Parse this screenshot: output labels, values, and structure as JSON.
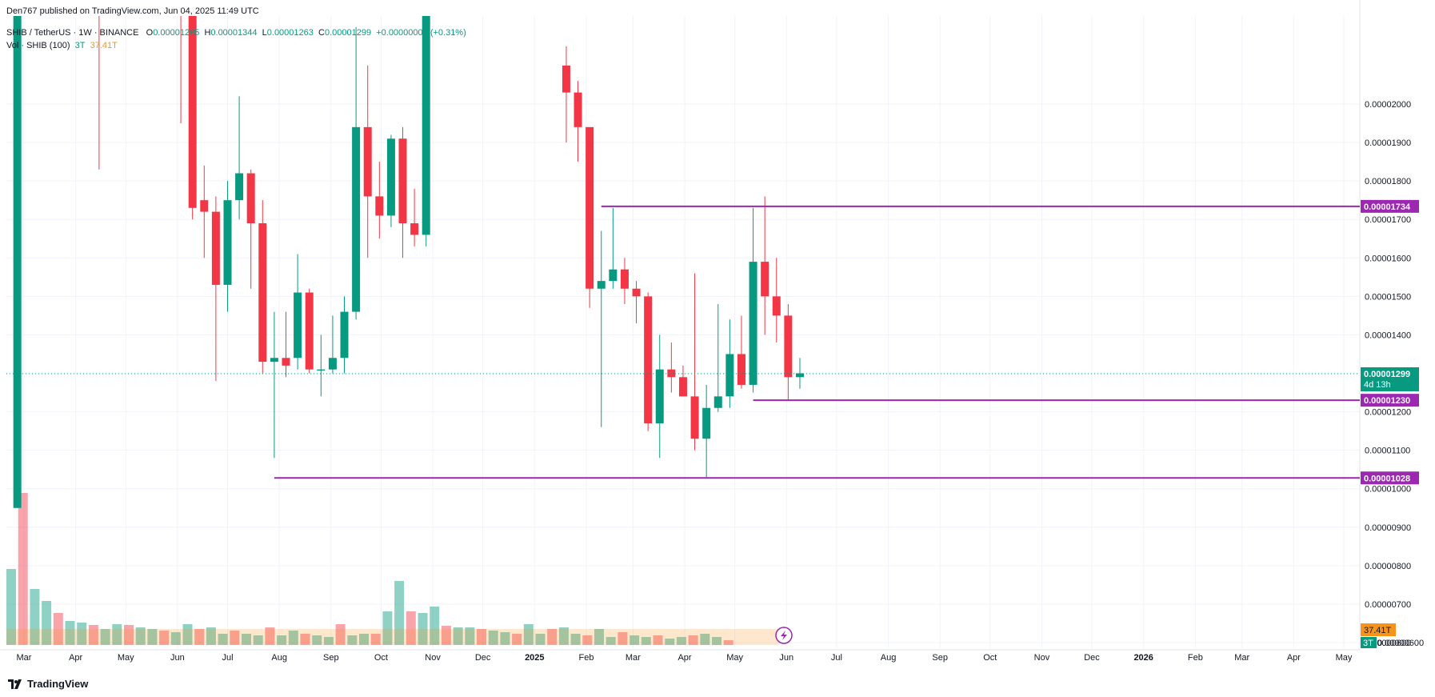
{
  "header": {
    "published": "Den767 published on TradingView.com, Jun 04, 2025 11:49 UTC",
    "symbol": "SHIB / TetherUS · 1W · BINANCE",
    "o_label": "O",
    "o_value": "0.00001295",
    "h_label": "H",
    "h_value": "0.00001344",
    "l_label": "L",
    "l_value": "0.00001263",
    "c_label": "C",
    "c_value": "0.00001299",
    "change": "+0.00000004 (+0.31%)",
    "vol_label": "Vol · SHIB (100)",
    "vol_value_1": "3T",
    "vol_value_2": "37.41T"
  },
  "footer": {
    "brand": "TradingView",
    "logo_icon": "tradingview-logo-icon"
  },
  "colors": {
    "up": "#089981",
    "down": "#f23645",
    "level_line": "#9c27b0",
    "current_price": "#089981",
    "volume_ma": "#f7931a"
  },
  "chart_data": {
    "type": "candlestick",
    "ylim": [
      6e-06,
      2.13e-05
    ],
    "y_ticks": [
      "0.00000600",
      "0.00000700",
      "0.00000800",
      "0.00000900",
      "0.00001000",
      "0.00001100",
      "0.00001200",
      "0.00001300",
      "0.00001400",
      "0.00001500",
      "0.00001600",
      "0.00001700",
      "0.00001800",
      "0.00001900",
      "0.00002000"
    ],
    "y_tick_values": [
      6e-06,
      7e-06,
      8e-06,
      9e-06,
      1e-05,
      1.1e-05,
      1.2e-05,
      1.3e-05,
      1.4e-05,
      1.5e-05,
      1.6e-05,
      1.7e-05,
      1.8e-05,
      1.9e-05,
      2e-05
    ],
    "x_months": [
      {
        "label": "Mar",
        "date": "2024-03-01"
      },
      {
        "label": "Apr",
        "date": "2024-04-01"
      },
      {
        "label": "May",
        "date": "2024-05-01"
      },
      {
        "label": "Jun",
        "date": "2024-06-01"
      },
      {
        "label": "Jul",
        "date": "2024-07-01"
      },
      {
        "label": "Aug",
        "date": "2024-08-01"
      },
      {
        "label": "Sep",
        "date": "2024-09-01"
      },
      {
        "label": "Oct",
        "date": "2024-10-01"
      },
      {
        "label": "Nov",
        "date": "2024-11-01"
      },
      {
        "label": "Dec",
        "date": "2024-12-01"
      },
      {
        "label": "2025",
        "date": "2025-01-01",
        "bold": true
      },
      {
        "label": "Feb",
        "date": "2025-02-01"
      },
      {
        "label": "Mar",
        "date": "2025-03-01"
      },
      {
        "label": "Apr",
        "date": "2025-04-01"
      },
      {
        "label": "May",
        "date": "2025-05-01"
      },
      {
        "label": "Jun",
        "date": "2025-06-01"
      },
      {
        "label": "Jul",
        "date": "2025-07-01"
      },
      {
        "label": "Aug",
        "date": "2025-08-01"
      },
      {
        "label": "Sep",
        "date": "2025-09-01"
      },
      {
        "label": "Oct",
        "date": "2025-10-01"
      },
      {
        "label": "Nov",
        "date": "2025-11-01"
      },
      {
        "label": "Dec",
        "date": "2025-12-01"
      },
      {
        "label": "2026",
        "date": "2026-01-01",
        "bold": true
      },
      {
        "label": "Feb",
        "date": "2026-02-01"
      },
      {
        "label": "Mar",
        "date": "2026-03-01"
      },
      {
        "label": "Apr",
        "date": "2026-04-01"
      },
      {
        "label": "May",
        "date": "2026-05-01"
      }
    ],
    "candles": [
      {
        "t": "2024-02-26",
        "o": 9.5e-06,
        "h": 3.3e-05,
        "l": 9.5e-06,
        "c": 3.2e-05,
        "v": 8.6
      },
      {
        "t": "2024-04-15",
        "o": 2.6e-05,
        "h": 2.75e-05,
        "l": 1.83e-05,
        "c": 2.4e-05,
        "v": 0
      },
      {
        "t": "2024-06-03",
        "o": 2.4e-05,
        "h": 2.5e-05,
        "l": 1.95e-05,
        "c": 2.3e-05,
        "v": 0
      },
      {
        "t": "2024-06-10",
        "o": 2.3e-05,
        "h": 2.45e-05,
        "l": 1.7e-05,
        "c": 1.73e-05,
        "v": 0
      },
      {
        "t": "2024-06-17",
        "o": 1.75e-05,
        "h": 1.84e-05,
        "l": 1.6e-05,
        "c": 1.72e-05,
        "v": 0
      },
      {
        "t": "2024-06-24",
        "o": 1.72e-05,
        "h": 1.76e-05,
        "l": 1.28e-05,
        "c": 1.53e-05,
        "v": 0
      },
      {
        "t": "2024-07-01",
        "o": 1.53e-05,
        "h": 1.8e-05,
        "l": 1.46e-05,
        "c": 1.75e-05,
        "v": 0
      },
      {
        "t": "2024-07-08",
        "o": 1.75e-05,
        "h": 2.02e-05,
        "l": 1.7e-05,
        "c": 1.82e-05,
        "v": 0
      },
      {
        "t": "2024-07-15",
        "o": 1.82e-05,
        "h": 1.83e-05,
        "l": 1.52e-05,
        "c": 1.69e-05,
        "v": 0
      },
      {
        "t": "2024-07-22",
        "o": 1.69e-05,
        "h": 1.75e-05,
        "l": 1.3e-05,
        "c": 1.33e-05,
        "v": 0
      },
      {
        "t": "2024-07-29",
        "o": 1.33e-05,
        "h": 1.46e-05,
        "l": 1.08e-05,
        "c": 1.34e-05,
        "v": 0
      },
      {
        "t": "2024-08-05",
        "o": 1.34e-05,
        "h": 1.46e-05,
        "l": 1.29e-05,
        "c": 1.32e-05,
        "v": 0
      },
      {
        "t": "2024-08-12",
        "o": 1.34e-05,
        "h": 1.61e-05,
        "l": 1.31e-05,
        "c": 1.51e-05,
        "v": 0
      },
      {
        "t": "2024-08-19",
        "o": 1.51e-05,
        "h": 1.52e-05,
        "l": 1.3e-05,
        "c": 1.31e-05,
        "v": 0
      },
      {
        "t": "2024-08-26",
        "o": 1.31e-05,
        "h": 1.4e-05,
        "l": 1.24e-05,
        "c": 1.31e-05,
        "v": 0
      },
      {
        "t": "2024-09-02",
        "o": 1.31e-05,
        "h": 1.45e-05,
        "l": 1.3e-05,
        "c": 1.34e-05,
        "v": 0
      },
      {
        "t": "2024-09-09",
        "o": 1.34e-05,
        "h": 1.5e-05,
        "l": 1.3e-05,
        "c": 1.46e-05,
        "v": 0
      },
      {
        "t": "2024-09-16",
        "o": 1.46e-05,
        "h": 2.2e-05,
        "l": 1.44e-05,
        "c": 1.94e-05,
        "v": 0
      },
      {
        "t": "2024-09-23",
        "o": 1.94e-05,
        "h": 2.1e-05,
        "l": 1.6e-05,
        "c": 1.76e-05,
        "v": 0
      },
      {
        "t": "2024-09-30",
        "o": 1.76e-05,
        "h": 1.85e-05,
        "l": 1.65e-05,
        "c": 1.71e-05,
        "v": 0
      },
      {
        "t": "2024-10-07",
        "o": 1.71e-05,
        "h": 1.92e-05,
        "l": 1.68e-05,
        "c": 1.91e-05,
        "v": 0
      },
      {
        "t": "2024-10-14",
        "o": 1.91e-05,
        "h": 1.94e-05,
        "l": 1.6e-05,
        "c": 1.69e-05,
        "v": 0
      },
      {
        "t": "2024-10-21",
        "o": 1.69e-05,
        "h": 1.78e-05,
        "l": 1.63e-05,
        "c": 1.66e-05,
        "v": 0
      },
      {
        "t": "2024-10-28",
        "o": 1.66e-05,
        "h": 3.3e-05,
        "l": 1.63e-05,
        "c": 2.8e-05,
        "v": 0
      },
      {
        "t": "2025-01-20",
        "o": 2.1e-05,
        "h": 2.15e-05,
        "l": 1.9e-05,
        "c": 2.03e-05,
        "v": 0
      },
      {
        "t": "2025-01-27",
        "o": 2.03e-05,
        "h": 2.06e-05,
        "l": 1.85e-05,
        "c": 1.94e-05,
        "v": 0
      },
      {
        "t": "2025-02-03",
        "o": 1.94e-05,
        "h": 1.94e-05,
        "l": 1.47e-05,
        "c": 1.52e-05,
        "v": 0
      },
      {
        "t": "2025-02-10",
        "o": 1.52e-05,
        "h": 1.67e-05,
        "l": 1.16e-05,
        "c": 1.54e-05,
        "v": 0
      },
      {
        "t": "2025-02-17",
        "o": 1.54e-05,
        "h": 1.73e-05,
        "l": 1.52e-05,
        "c": 1.57e-05,
        "v": 0
      },
      {
        "t": "2025-02-24",
        "o": 1.57e-05,
        "h": 1.6e-05,
        "l": 1.48e-05,
        "c": 1.52e-05,
        "v": 0
      },
      {
        "t": "2025-03-03",
        "o": 1.52e-05,
        "h": 1.54e-05,
        "l": 1.43e-05,
        "c": 1.5e-05,
        "v": 0
      },
      {
        "t": "2025-03-10",
        "o": 1.5e-05,
        "h": 1.51e-05,
        "l": 1.15e-05,
        "c": 1.17e-05,
        "v": 0
      },
      {
        "t": "2025-03-17",
        "o": 1.17e-05,
        "h": 1.4e-05,
        "l": 1.08e-05,
        "c": 1.31e-05,
        "v": 0
      },
      {
        "t": "2025-03-24",
        "o": 1.31e-05,
        "h": 1.38e-05,
        "l": 1.25e-05,
        "c": 1.29e-05,
        "v": 0
      },
      {
        "t": "2025-03-31",
        "o": 1.29e-05,
        "h": 1.32e-05,
        "l": 1.24e-05,
        "c": 1.24e-05,
        "v": 0
      },
      {
        "t": "2025-04-07",
        "o": 1.24e-05,
        "h": 1.56e-05,
        "l": 1.1e-05,
        "c": 1.13e-05,
        "v": 0
      },
      {
        "t": "2025-04-14",
        "o": 1.13e-05,
        "h": 1.27e-05,
        "l": 1.03e-05,
        "c": 1.21e-05,
        "v": 0
      },
      {
        "t": "2025-04-21",
        "o": 1.21e-05,
        "h": 1.48e-05,
        "l": 1.2e-05,
        "c": 1.24e-05,
        "v": 0
      },
      {
        "t": "2025-04-28",
        "o": 1.24e-05,
        "h": 1.44e-05,
        "l": 1.21e-05,
        "c": 1.35e-05,
        "v": 0
      },
      {
        "t": "2025-05-05",
        "o": 1.35e-05,
        "h": 1.45e-05,
        "l": 1.26e-05,
        "c": 1.27e-05,
        "v": 0
      },
      {
        "t": "2025-05-12",
        "o": 1.27e-05,
        "h": 1.73e-05,
        "l": 1.25e-05,
        "c": 1.59e-05,
        "v": 0
      },
      {
        "t": "2025-05-19",
        "o": 1.59e-05,
        "h": 1.76e-05,
        "l": 1.4e-05,
        "c": 1.5e-05,
        "v": 0
      },
      {
        "t": "2025-05-26",
        "o": 1.5e-05,
        "h": 1.6e-05,
        "l": 1.38e-05,
        "c": 1.45e-05,
        "v": 0
      },
      {
        "t": "2025-06-02",
        "o": 1.45e-05,
        "h": 1.48e-05,
        "l": 1.23e-05,
        "c": 1.29e-05,
        "v": 0
      },
      {
        "t": "2025-06-09",
        "o": 1.29e-05,
        "h": 1.34e-05,
        "l": 1.26e-05,
        "c": 1.3e-05,
        "v": 0
      }
    ],
    "levels": [
      {
        "value": "0.00001734",
        "price": 1.734e-05,
        "from": "2025-02-10"
      },
      {
        "value": "0.00001230",
        "price": 1.23e-05,
        "from": "2025-05-12"
      },
      {
        "value": "0.00001028",
        "price": 1.028e-05,
        "from": "2024-07-29"
      }
    ],
    "current_price": {
      "value": "0.00001299",
      "price": 1.299e-05,
      "countdown": "4d 13h"
    },
    "volume_label": "37.41T",
    "volume_axis_label": "3T",
    "volume_axis_tick": "0.00000600"
  }
}
